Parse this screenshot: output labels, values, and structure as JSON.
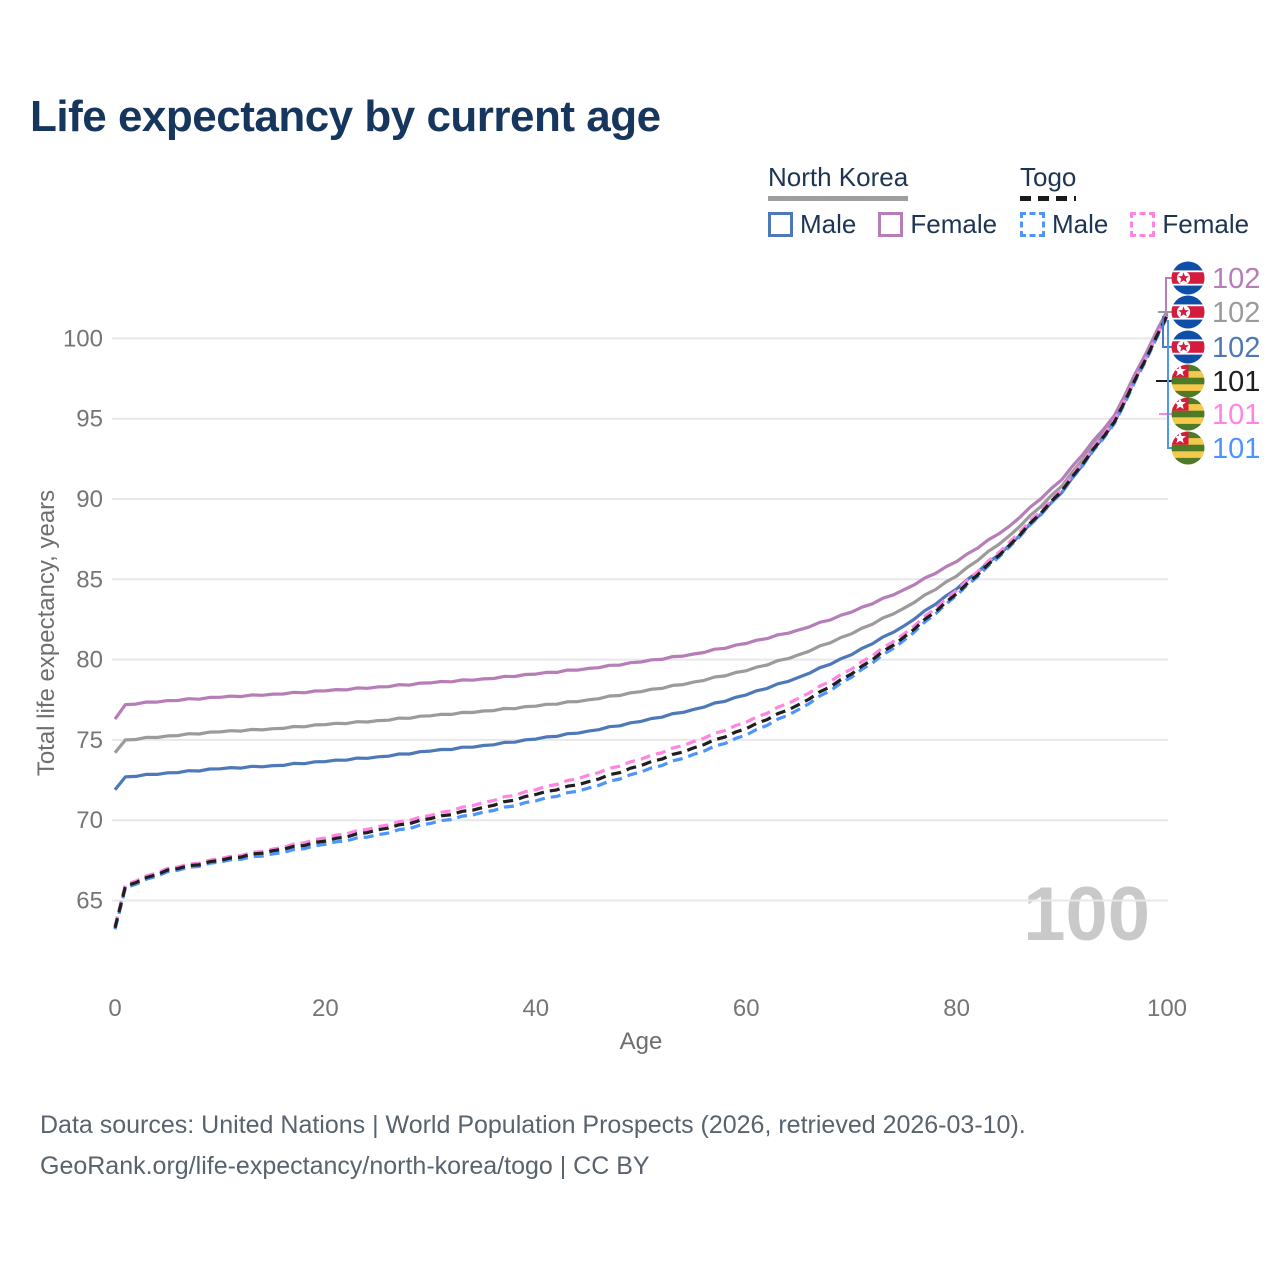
{
  "title": "Life expectancy by current age",
  "legend": {
    "groups": [
      {
        "id": "north-korea",
        "label": "North Korea",
        "underline_color": "#9e9e9e",
        "underline_style": "solid",
        "items": [
          {
            "label": "Male",
            "color": "#4e79b9",
            "dashed": false
          },
          {
            "label": "Female",
            "color": "#b77db8",
            "dashed": false
          }
        ]
      },
      {
        "id": "togo",
        "label": "Togo",
        "underline_color": "#1a1a1a",
        "underline_style": "dashed",
        "items": [
          {
            "label": "Male",
            "color": "#4d94ff",
            "dashed": true
          },
          {
            "label": "Female",
            "color": "#ff85e2",
            "dashed": true
          }
        ]
      }
    ]
  },
  "chart_data": {
    "type": "line",
    "title": "Life expectancy by current age",
    "xlabel": "Age",
    "ylabel": "Total life expectancy, years",
    "xticks": [
      0,
      20,
      40,
      60,
      80,
      100
    ],
    "yticks": [
      65,
      70,
      75,
      80,
      85,
      90,
      95,
      100
    ],
    "xlim": [
      0,
      100
    ],
    "ylim": [
      62.5,
      104.5
    ],
    "grid": "horizontal-only",
    "legend_position": "top-right",
    "watermark": "100",
    "x": [
      0,
      1,
      5,
      10,
      15,
      20,
      25,
      30,
      35,
      40,
      45,
      50,
      55,
      60,
      65,
      70,
      75,
      80,
      85,
      90,
      95,
      100
    ],
    "series": [
      {
        "id": "nk-female",
        "name": "North Korea Female",
        "country": "North Korea",
        "sex": "Female",
        "color": "#b77db8",
        "dashed": false,
        "end_label": "102",
        "values": [
          76.3,
          77.2,
          77.45,
          77.65,
          77.85,
          78.05,
          78.3,
          78.55,
          78.8,
          79.1,
          79.45,
          79.85,
          80.35,
          81.0,
          81.85,
          82.95,
          84.35,
          86.1,
          88.3,
          91.2,
          95.2,
          101.7
        ]
      },
      {
        "id": "nk-both",
        "name": "North Korea Both sexes",
        "country": "North Korea",
        "sex": "Both",
        "color": "#9b9b9b",
        "dashed": false,
        "end_label": "102",
        "values": [
          74.2,
          75.0,
          75.25,
          75.5,
          75.7,
          75.95,
          76.2,
          76.5,
          76.8,
          77.1,
          77.5,
          78.0,
          78.6,
          79.3,
          80.3,
          81.6,
          83.2,
          85.2,
          87.7,
          90.8,
          95.0,
          101.6
        ]
      },
      {
        "id": "nk-male",
        "name": "North Korea Male",
        "country": "North Korea",
        "sex": "Male",
        "color": "#4e79b9",
        "dashed": false,
        "end_label": "102",
        "values": [
          71.9,
          72.7,
          72.95,
          73.2,
          73.4,
          73.65,
          73.95,
          74.3,
          74.65,
          75.05,
          75.55,
          76.15,
          76.9,
          77.8,
          78.9,
          80.3,
          82.1,
          84.4,
          87.1,
          90.4,
          94.8,
          101.5
        ]
      },
      {
        "id": "togo-female",
        "name": "Togo Female",
        "country": "Togo",
        "sex": "Female",
        "color": "#ff85e2",
        "dashed": true,
        "end_label": "101",
        "values": [
          63.4,
          66.0,
          67.0,
          67.6,
          68.2,
          68.9,
          69.6,
          70.3,
          71.1,
          71.9,
          72.8,
          73.8,
          74.9,
          76.1,
          77.6,
          79.4,
          81.6,
          84.3,
          87.3,
          90.6,
          94.9,
          101.4
        ]
      },
      {
        "id": "togo-both",
        "name": "Togo Both sexes",
        "country": "Togo",
        "sex": "Both",
        "color": "#1f1f1f",
        "dashed": true,
        "end_label": "101",
        "values": [
          63.3,
          65.9,
          66.9,
          67.5,
          68.1,
          68.7,
          69.4,
          70.1,
          70.8,
          71.6,
          72.4,
          73.4,
          74.5,
          75.7,
          77.2,
          79.1,
          81.4,
          84.1,
          87.1,
          90.5,
          94.8,
          101.4
        ]
      },
      {
        "id": "togo-male",
        "name": "Togo Male",
        "country": "Togo",
        "sex": "Male",
        "color": "#4d94ff",
        "dashed": true,
        "end_label": "101",
        "values": [
          63.2,
          65.8,
          66.8,
          67.4,
          67.9,
          68.5,
          69.1,
          69.8,
          70.5,
          71.2,
          72.0,
          73.0,
          74.1,
          75.3,
          76.9,
          78.9,
          81.2,
          84.0,
          87.0,
          90.4,
          94.7,
          101.3
        ]
      }
    ],
    "end_labels": [
      {
        "series": "nk-female",
        "value": "102"
      },
      {
        "series": "nk-both",
        "value": "102"
      },
      {
        "series": "nk-male",
        "value": "102"
      },
      {
        "series": "togo-both",
        "value": "101"
      },
      {
        "series": "togo-female",
        "value": "101"
      },
      {
        "series": "togo-male",
        "value": "101"
      }
    ]
  },
  "footer": {
    "line1": "Data sources: United Nations | World Population Prospects (2026, retrieved 2026-03-10).",
    "line2": "GeoRank.org/life-expectancy/north-korea/togo | CC BY"
  }
}
